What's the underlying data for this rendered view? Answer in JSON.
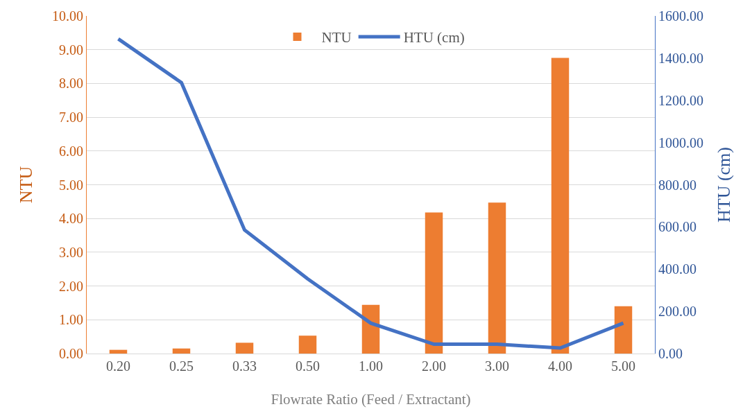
{
  "chart_data": {
    "type": "bar",
    "categories": [
      "0.20",
      "0.25",
      "0.33",
      "0.50",
      "1.00",
      "2.00",
      "3.00",
      "4.00",
      "5.00"
    ],
    "xlabel": "Flowrate Ratio (Feed / Extractant)",
    "ylabel": "NTU",
    "y2label": "HTU (cm)",
    "series": [
      {
        "name": "NTU",
        "color": "#ed7d31",
        "values": [
          0.11,
          0.15,
          0.32,
          0.53,
          1.44,
          4.18,
          4.47,
          8.76,
          1.4
        ]
      },
      {
        "name": "HTU (cm)",
        "type": "line",
        "axis": "y2",
        "color": "#4472c4",
        "values": [
          1491,
          1284,
          586,
          354,
          144,
          44,
          44,
          26,
          144
        ]
      }
    ],
    "ylim": [
      0,
      10
    ],
    "yticks": [
      {
        "value": 0,
        "label": "0.00"
      },
      {
        "value": 1,
        "label": "1.00"
      },
      {
        "value": 2,
        "label": "2.00"
      },
      {
        "value": 3,
        "label": "3.00"
      },
      {
        "value": 4,
        "label": "4.00"
      },
      {
        "value": 5,
        "label": "5.00"
      },
      {
        "value": 6,
        "label": "6.00"
      },
      {
        "value": 7,
        "label": "7.00"
      },
      {
        "value": 8,
        "label": "8.00"
      },
      {
        "value": 9,
        "label": "9.00"
      },
      {
        "value": 10,
        "label": "10.00"
      }
    ],
    "y2lim": [
      0,
      1600
    ],
    "y2ticks": [
      {
        "value": 0,
        "label": "0.00"
      },
      {
        "value": 200,
        "label": "200.00"
      },
      {
        "value": 400,
        "label": "400.00"
      },
      {
        "value": 600,
        "label": "600.00"
      },
      {
        "value": 800,
        "label": "800.00"
      },
      {
        "value": 1000,
        "label": "1000.00"
      },
      {
        "value": 1200,
        "label": "1200.00"
      },
      {
        "value": 1400,
        "label": "1400.00"
      },
      {
        "value": 1600,
        "label": "1600.00"
      }
    ],
    "grid": "y",
    "legend": "top",
    "marker": "none",
    "line_style": "solid"
  }
}
